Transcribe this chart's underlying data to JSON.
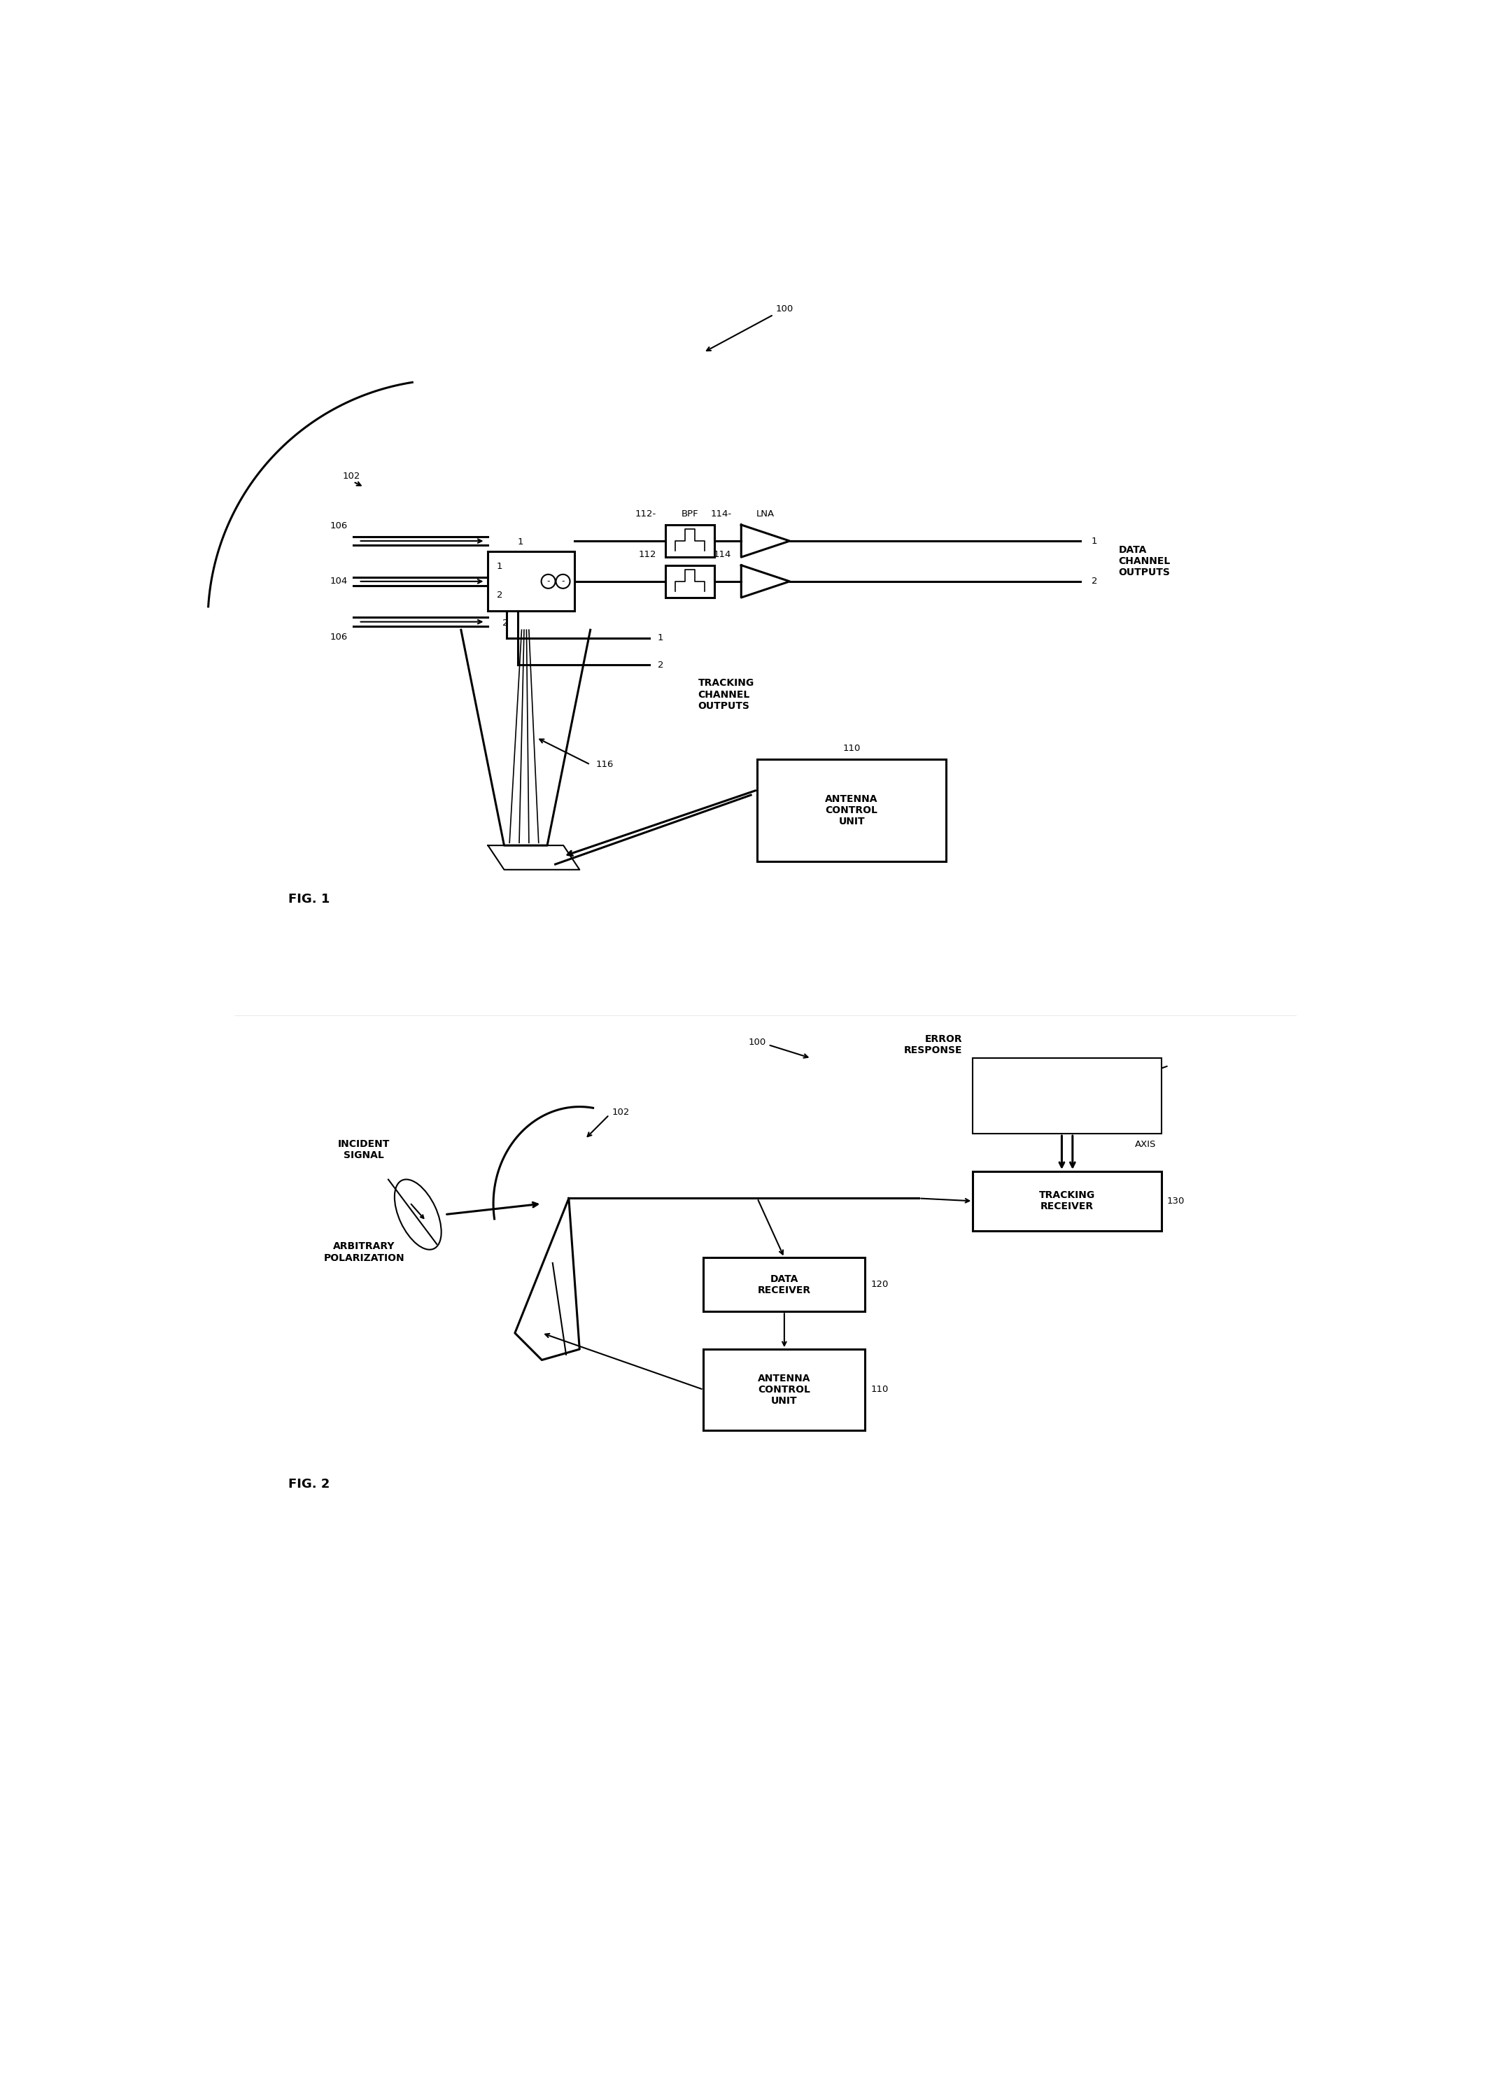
{
  "bg_color": "#ffffff",
  "fig_width": 21.48,
  "fig_height": 29.71,
  "fig1": {
    "label": "FIG. 1",
    "ref_100": "100",
    "ref_102": "102",
    "ref_104": "104",
    "ref_106": "106",
    "ref_110": "110",
    "ref_112": "112",
    "ref_114": "114",
    "ref_116": "116",
    "box_110_text": "ANTENNA\nCONTROL\nUNIT",
    "data_channel_outputs": "DATA\nCHANNEL\nOUTPUTS",
    "tracking_channel_outputs": "TRACKING\nCHANNEL\nOUTPUTS",
    "bpf_label": "BPF",
    "lna_label": "LNA"
  },
  "fig2": {
    "label": "FIG. 2",
    "ref_100": "100",
    "ref_102": "102",
    "ref_110": "110",
    "ref_120": "120",
    "ref_130": "130",
    "incident_signal": "INCIDENT\nSIGNAL",
    "arbitrary_polarization": "ARBITRARY\nPOLARIZATION",
    "error_response": "ERROR\nRESPONSE",
    "axis_label": "AXIS",
    "box_110_text": "ANTENNA\nCONTROL\nUNIT",
    "box_120_text": "DATA\nRECEIVER",
    "box_130_text": "TRACKING\nRECEIVER"
  }
}
